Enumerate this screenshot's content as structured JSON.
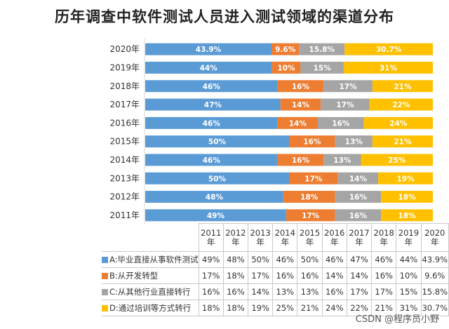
{
  "title": "历年调查中软件测试人员进入测试领域的渠道分布",
  "watermark": "CSDN @程序员小野",
  "chart_data": {
    "type": "bar",
    "orientation": "horizontal",
    "stacked": true,
    "title": "历年调查中软件测试人员进入测试领域的渠道分布",
    "categories": [
      "2020年",
      "2019年",
      "2018年",
      "2017年",
      "2016年",
      "2015年",
      "2014年",
      "2013年",
      "2012年",
      "2011年"
    ],
    "series": [
      {
        "name": "A:毕业直接从事软件测试",
        "color": "#5b9bd5",
        "values": [
          43.9,
          44,
          46,
          47,
          46,
          50,
          46,
          50,
          48,
          49
        ],
        "labels": [
          "43.9%",
          "44%",
          "46%",
          "47%",
          "46%",
          "50%",
          "46%",
          "50%",
          "48%",
          "49%"
        ]
      },
      {
        "name": "B:从开发转型",
        "color": "#ed7d31",
        "values": [
          9.6,
          10,
          16,
          14,
          14,
          16,
          16,
          17,
          18,
          17
        ],
        "labels": [
          "9.6%",
          "10%",
          "16%",
          "14%",
          "14%",
          "16%",
          "16%",
          "17%",
          "18%",
          "17%"
        ]
      },
      {
        "name": "C:从其他行业直接转行",
        "color": "#a5a5a5",
        "values": [
          15.8,
          15,
          17,
          17,
          16,
          13,
          13,
          14,
          16,
          16
        ],
        "labels": [
          "15.8%",
          "15%",
          "17%",
          "17%",
          "16%",
          "13%",
          "13%",
          "14%",
          "16%",
          "16%"
        ]
      },
      {
        "name": "D:通过培训等方式转行",
        "color": "#ffc000",
        "values": [
          30.7,
          31,
          21,
          22,
          24,
          21,
          25,
          19,
          18,
          18
        ],
        "labels": [
          "30.7%",
          "31%",
          "21%",
          "22%",
          "24%",
          "21%",
          "25%",
          "19%",
          "18%",
          "18%"
        ]
      }
    ],
    "xlim": [
      0,
      100
    ]
  },
  "table": {
    "years": [
      "2011\n年",
      "2012\n年",
      "2013\n年",
      "2014\n年",
      "2015\n年",
      "2016\n年",
      "2017\n年",
      "2018\n年",
      "2019\n年",
      "2020\n年"
    ],
    "rows": [
      {
        "label": "A:毕业直接从事软件测试",
        "color": "#5b9bd5",
        "cells": [
          "49%",
          "48%",
          "50%",
          "46%",
          "50%",
          "46%",
          "47%",
          "46%",
          "44%",
          "43.9%"
        ]
      },
      {
        "label": "B:从开发转型",
        "color": "#ed7d31",
        "cells": [
          "17%",
          "18%",
          "17%",
          "16%",
          "16%",
          "14%",
          "14%",
          "16%",
          "10%",
          "9.6%"
        ]
      },
      {
        "label": "C:从其他行业直接转行",
        "color": "#a5a5a5",
        "cells": [
          "16%",
          "16%",
          "14%",
          "13%",
          "13%",
          "16%",
          "17%",
          "17%",
          "15%",
          "15.8%"
        ]
      },
      {
        "label": "D:通过培训等方式转行",
        "color": "#ffc000",
        "cells": [
          "18%",
          "18%",
          "19%",
          "25%",
          "21%",
          "24%",
          "22%",
          "21%",
          "31%",
          "30.7%"
        ]
      }
    ]
  }
}
